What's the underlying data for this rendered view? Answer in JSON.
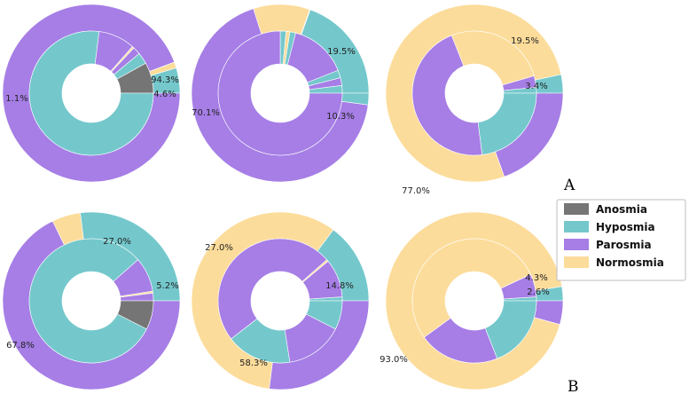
{
  "colors": {
    "Anosmia": "#757575",
    "Hyposmia": "#74C8CC",
    "Parosmia": "#A67EE6",
    "Normosmia": "#FCDC9A"
  },
  "legend": {
    "items": [
      "Anosmia",
      "Hyposmia",
      "Parosmia",
      "Normosmia"
    ],
    "placement": "right"
  },
  "panel_labels": {
    "a": "A",
    "b": "B"
  },
  "chart_data": [
    {
      "type": "pie",
      "subtype": "nested-donut",
      "panel": "A",
      "position": "row1-col1",
      "outer": {
        "labels": [
          "Hyposmia",
          "Normosmia",
          "Parosmia"
        ],
        "values": [
          4.6,
          1.1,
          94.3
        ]
      },
      "inner": {
        "labels": [
          "Anosmia",
          "Hyposmia",
          "Parosmia",
          "Normosmia",
          "Parosmia",
          "Hyposmia"
        ],
        "values": [
          8.0,
          3.0,
          2.0,
          0.5,
          9.5,
          77.0
        ]
      },
      "annotations": [
        "94.3%",
        "4.6%",
        "1.1%"
      ]
    },
    {
      "type": "pie",
      "subtype": "nested-donut",
      "panel": "A",
      "position": "row1-col2",
      "outer": {
        "labels": [
          "Hyposmia",
          "Parosmia",
          "Normosmia",
          "Parosmia",
          "Hyposmia"
        ],
        "values": [
          19.5,
          0.1,
          10.3,
          68.0,
          2.1
        ]
      },
      "inner": {
        "labels": [
          "Hyposmia",
          "Parosmia",
          "Hyposmia",
          "Parosmia",
          "Hyposmia",
          "Normosmia",
          "Hyposmia",
          "Parosmia"
        ],
        "values": [
          2.0,
          2.0,
          2.0,
          15.0,
          1.5,
          1.0,
          1.5,
          75.0
        ]
      },
      "annotations": [
        "19.5%",
        "10.3%",
        "70.1%"
      ]
    },
    {
      "type": "pie",
      "subtype": "nested-donut",
      "panel": "A",
      "position": "row1-col3",
      "outer": {
        "labels": [
          "Hyposmia",
          "Normosmia",
          "Parosmia"
        ],
        "values": [
          3.4,
          77.0,
          19.5
        ]
      },
      "inner": {
        "labels": [
          "Hyposmia",
          "Parosmia",
          "Normosmia",
          "Parosmia",
          "Hyposmia"
        ],
        "values": [
          1.5,
          3.0,
          26.5,
          46.0,
          23.0
        ]
      },
      "annotations": [
        "19.5%",
        "3.4%",
        "77.0%"
      ]
    },
    {
      "type": "pie",
      "subtype": "nested-donut",
      "panel": "B",
      "position": "row2-col1",
      "outer": {
        "labels": [
          "Hyposmia",
          "Normosmia",
          "Parosmia"
        ],
        "values": [
          27.0,
          5.2,
          67.8
        ]
      },
      "inner": {
        "labels": [
          "Parosmia",
          "Normosmia",
          "Parosmia",
          "Hyposmia",
          "Anosmia"
        ],
        "values": [
          2.0,
          0.5,
          9.0,
          81.0,
          7.5
        ]
      },
      "annotations": [
        "27.0%",
        "5.2%",
        "67.8%"
      ]
    },
    {
      "type": "pie",
      "subtype": "nested-donut",
      "panel": "B",
      "position": "row2-col2",
      "outer": {
        "labels": [
          "Hyposmia",
          "Normosmia",
          "Parosmia"
        ],
        "values": [
          14.8,
          58.3,
          27.0
        ]
      },
      "inner": {
        "labels": [
          "Hyposmia",
          "Parosmia",
          "Normosmia",
          "Parosmia",
          "Hyposmia",
          "Parosmia",
          "Hyposmia"
        ],
        "values": [
          1.0,
          10.0,
          0.5,
          49.0,
          17.0,
          15.0,
          7.5
        ]
      },
      "annotations": [
        "27.0%",
        "14.8%",
        "58.3%"
      ]
    },
    {
      "type": "pie",
      "subtype": "nested-donut",
      "panel": "B",
      "position": "row2-col3",
      "outer": {
        "labels": [
          "Hyposmia",
          "Normosmia",
          "Parosmia"
        ],
        "values": [
          2.6,
          93.0,
          4.3
        ]
      },
      "inner": {
        "labels": [
          "Hyposmia",
          "Parosmia",
          "Normosmia",
          "Parosmia",
          "Hyposmia"
        ],
        "values": [
          1.0,
          6.0,
          53.0,
          21.0,
          19.0
        ]
      },
      "annotations": [
        "4.3%",
        "2.6%",
        "93.0%"
      ]
    }
  ]
}
